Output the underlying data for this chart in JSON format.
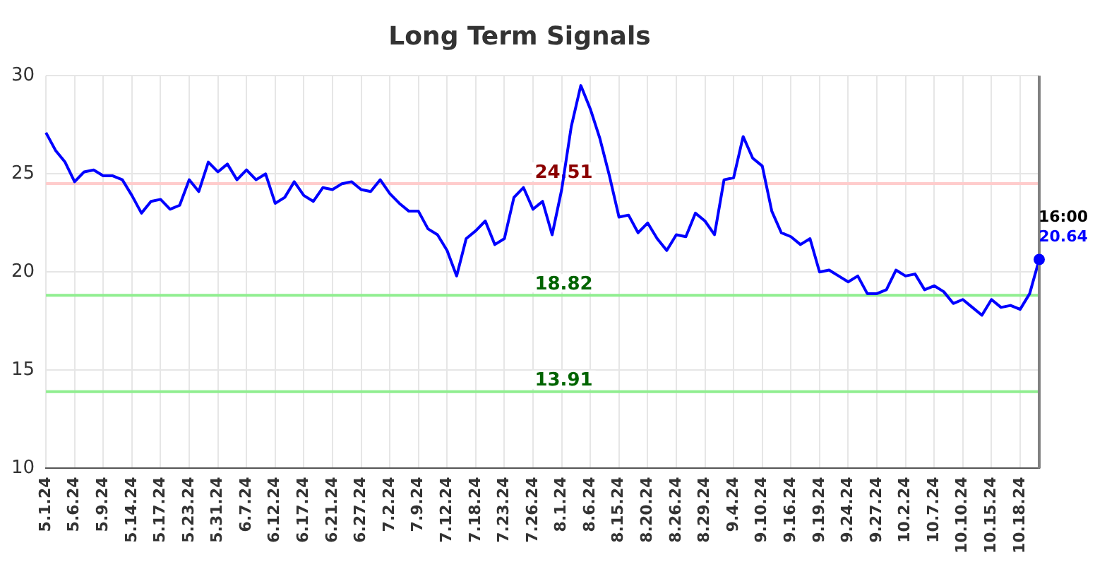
{
  "chart_data": {
    "type": "line",
    "title": "Long Term Signals",
    "categories": [
      "5.1.24",
      null,
      null,
      "5.6.24",
      null,
      null,
      "5.9.24",
      null,
      null,
      "5.14.24",
      null,
      null,
      "5.17.24",
      null,
      null,
      "5.23.24",
      null,
      null,
      "5.31.24",
      null,
      null,
      "6.7.24",
      null,
      null,
      "6.12.24",
      null,
      null,
      "6.17.24",
      null,
      null,
      "6.21.24",
      null,
      null,
      "6.27.24",
      null,
      null,
      "7.2.24",
      null,
      null,
      "7.9.24",
      null,
      null,
      "7.12.24",
      null,
      null,
      "7.18.24",
      null,
      null,
      "7.23.24",
      null,
      null,
      "7.26.24",
      null,
      null,
      "8.1.24",
      null,
      null,
      "8.6.24",
      null,
      null,
      "8.15.24",
      null,
      null,
      "8.20.24",
      null,
      null,
      "8.26.24",
      null,
      null,
      "8.29.24",
      null,
      null,
      "9.4.24",
      null,
      null,
      "9.10.24",
      null,
      null,
      "9.16.24",
      null,
      null,
      "9.19.24",
      null,
      null,
      "9.24.24",
      null,
      null,
      "9.27.24",
      null,
      null,
      "10.2.24",
      null,
      null,
      "10.7.24",
      null,
      null,
      "10.10.24",
      null,
      null,
      "10.15.24",
      null,
      null,
      "10.18.24",
      null,
      null
    ],
    "series": [
      {
        "color": "#0000ff",
        "values": [
          27.1,
          26.2,
          25.6,
          24.6,
          25.1,
          25.2,
          24.9,
          24.9,
          24.7,
          23.9,
          23.0,
          23.6,
          23.7,
          23.2,
          23.4,
          24.7,
          24.1,
          25.6,
          25.1,
          25.5,
          24.7,
          25.2,
          24.7,
          25.0,
          23.5,
          23.8,
          24.6,
          23.9,
          23.6,
          24.3,
          24.2,
          24.5,
          24.6,
          24.2,
          24.1,
          24.7,
          24.0,
          23.5,
          23.1,
          23.1,
          22.2,
          21.9,
          21.1,
          19.8,
          21.7,
          22.1,
          22.6,
          21.4,
          21.7,
          23.8,
          24.3,
          23.2,
          23.6,
          21.9,
          24.2,
          27.4,
          29.5,
          28.3,
          26.8,
          24.9,
          22.8,
          22.9,
          22.0,
          22.5,
          21.7,
          21.1,
          21.9,
          21.8,
          23.0,
          22.6,
          21.9,
          24.7,
          24.8,
          26.9,
          25.8,
          25.4,
          23.1,
          22.0,
          21.8,
          21.4,
          21.7,
          20.0,
          20.1,
          19.8,
          19.5,
          19.8,
          18.9,
          18.9,
          19.1,
          20.1,
          19.8,
          19.9,
          19.1,
          19.3,
          19.0,
          18.4,
          18.6,
          18.2,
          17.8,
          18.6,
          18.2,
          18.3,
          18.1,
          18.9,
          20.64
        ],
        "value_labels": [
          null,
          null,
          null,
          null,
          null,
          null,
          null,
          null,
          null,
          null,
          null,
          null,
          null,
          null,
          null,
          null,
          null,
          null,
          null,
          null,
          null,
          null,
          null,
          null,
          null,
          null,
          null,
          null,
          null,
          null,
          null,
          null,
          null,
          null,
          null,
          null,
          null,
          null,
          null,
          null,
          null,
          null,
          null,
          null,
          null,
          null,
          null,
          null,
          null,
          null,
          null,
          null,
          null,
          null,
          null,
          null,
          null,
          null,
          null,
          null,
          null,
          null,
          null,
          null,
          null,
          null,
          null,
          null,
          null,
          null,
          null,
          null,
          null,
          null,
          null,
          null,
          null,
          null,
          null,
          null,
          null,
          null,
          null,
          null,
          null,
          null,
          null,
          null,
          null,
          null,
          null,
          null,
          null,
          null,
          null,
          null,
          null,
          null,
          null,
          null,
          null,
          null,
          null,
          null,
          "20.64"
        ]
      }
    ],
    "ylim": [
      10,
      30
    ],
    "yticks": [
      10,
      15,
      20,
      25,
      30
    ],
    "grid": true,
    "legend": false,
    "marker": "none",
    "line_style": "solid",
    "ref_lines": [
      {
        "axis": "y",
        "value": 24.51,
        "label": "24.51",
        "color": "#ffcccc"
      },
      {
        "axis": "y",
        "value": 18.82,
        "label": "18.82",
        "color": "#90ee90"
      },
      {
        "axis": "y",
        "value": 13.91,
        "label": "13.91",
        "color": "#90ee90"
      }
    ],
    "annotations": [
      "16:00"
    ]
  }
}
